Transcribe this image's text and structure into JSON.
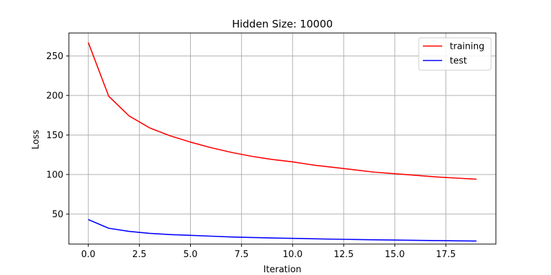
{
  "chart_data": {
    "type": "line",
    "title": "Hidden Size: 10000",
    "xlabel": "Iteration",
    "ylabel": "Loss",
    "xlim": [
      -0.95,
      19.95
    ],
    "ylim": [
      12,
      279
    ],
    "grid": true,
    "legend": "top-right",
    "x_ticks": [
      0.0,
      2.5,
      5.0,
      7.5,
      10.0,
      12.5,
      15.0,
      17.5
    ],
    "x_tick_labels": [
      "0.0",
      "2.5",
      "5.0",
      "7.5",
      "10.0",
      "12.5",
      "15.0",
      "17.5"
    ],
    "y_ticks": [
      50,
      100,
      150,
      200,
      250
    ],
    "y_tick_labels": [
      "50",
      "100",
      "150",
      "200",
      "250"
    ],
    "x": [
      0,
      1,
      2,
      3,
      4,
      5,
      6,
      7,
      8,
      9,
      10,
      11,
      12,
      13,
      14,
      15,
      16,
      17,
      18,
      19
    ],
    "series": [
      {
        "name": "training",
        "color": "#ff0000",
        "values": [
          267,
          199,
          174,
          159,
          149,
          141,
          134,
          128,
          123,
          119,
          116,
          112,
          109,
          106,
          103,
          101,
          99,
          97,
          95.5,
          94
        ]
      },
      {
        "name": "test",
        "color": "#0000ff",
        "values": [
          43,
          32,
          28,
          25.5,
          24,
          23,
          22,
          21,
          20.3,
          19.7,
          19.2,
          18.7,
          18.2,
          17.8,
          17.4,
          17.1,
          16.7,
          16.4,
          16.1,
          15.9
        ]
      }
    ]
  }
}
